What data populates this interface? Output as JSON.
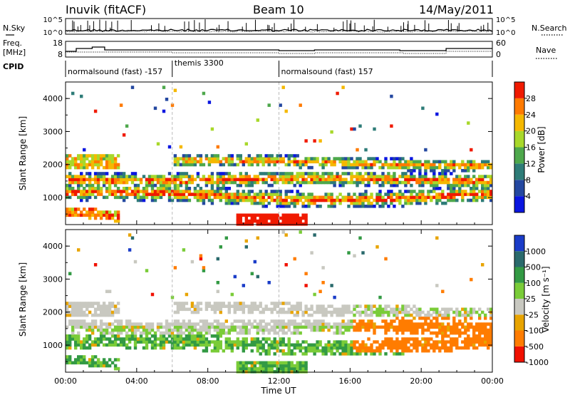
{
  "header": {
    "station": "Inuvik (fitACF)",
    "beam": "Beam 10",
    "date": "14/May/2011"
  },
  "side_labels": {
    "nsky": "N.Sky",
    "nsearch": "N.Search",
    "freq": "Freq.",
    "freq_unit": "[MHz]",
    "nave": "Nave",
    "cpid": "CPID"
  },
  "noise_axis": {
    "left_top": "10^5",
    "left_bottom": "10^0",
    "right_top": "10^5",
    "right_bottom": "10^0"
  },
  "freq_axis": {
    "left_top": "18",
    "left_bottom": "8",
    "right_top": "60",
    "right_bottom": "0"
  },
  "cpid_segments": [
    {
      "label": "normalsound (fast) -157",
      "start_h": 0,
      "end_h": 6
    },
    {
      "label": "themis 3300",
      "start_h": 6,
      "end_h": 12
    },
    {
      "label": "normalsound (fast) 157",
      "start_h": 12,
      "end_h": 24
    }
  ],
  "colors": {
    "power_scale": [
      "#0a16e0",
      "#2448a0",
      "#2e7c78",
      "#4ea84c",
      "#a8d82a",
      "#f5b800",
      "#ff7a00",
      "#f01a00"
    ],
    "velocity_scale": [
      "#1a3cc8",
      "#2a6a6c",
      "#339a44",
      "#7acc38",
      "#c8c8c0",
      "#e8a400",
      "#ff7c00",
      "#f01000"
    ]
  },
  "chart_data": [
    {
      "type": "heatmap",
      "name": "Power",
      "ylabel": "Slant Range [km]",
      "yticks": [
        "1000",
        "2000",
        "3000",
        "4000"
      ],
      "colorbar_label": "Power [dB]",
      "colorbar_ticks": [
        "4",
        "8",
        "12",
        "16",
        "20",
        "24",
        "28"
      ],
      "ylim": [
        180,
        4500
      ]
    },
    {
      "type": "heatmap",
      "name": "Velocity",
      "ylabel": "Slant Range [km]",
      "yticks": [
        "1000",
        "2000",
        "3000",
        "4000"
      ],
      "colorbar_label": "Velocity [m s⁻¹]",
      "colorbar_ticks": [
        "1000",
        "500",
        "100",
        "25",
        "-25",
        "-100",
        "-500",
        "-1000"
      ],
      "ylim": [
        180,
        4500
      ],
      "xlabel": "Time UT",
      "xticks": [
        "00:00",
        "04:00",
        "08:00",
        "12:00",
        "16:00",
        "20:00",
        "00:00"
      ],
      "xlim": [
        0,
        24
      ]
    }
  ]
}
